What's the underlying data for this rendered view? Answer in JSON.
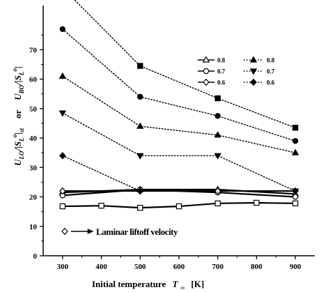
{
  "chart_data": {
    "type": "line",
    "xlabel": "Initial temperature",
    "xlabel_symbol": "T",
    "xlabel_sub": "∞",
    "xlabel_unit": "[K]",
    "ylabel_top": {
      "main": "U",
      "sub": "BO",
      "mid": "/|S",
      "sub2": "L",
      "sup": "o",
      "end": "|"
    },
    "ylabel_or": "or",
    "ylabel_bottom": {
      "main": "U",
      "sub": "LO",
      "mid": "/|S",
      "sub2": "L",
      "sup": "o",
      "end": "|",
      "sub3": "st"
    },
    "xlim": [
      250,
      950
    ],
    "ylim": [
      0,
      85
    ],
    "xticks": [
      300,
      400,
      500,
      600,
      700,
      800,
      900
    ],
    "yticks": [
      0,
      10,
      20,
      30,
      40,
      50,
      60,
      70
    ],
    "grid": false,
    "legend_position": "top-right",
    "series": [
      {
        "name": "0.8",
        "group": "liftoff",
        "marker": "triangle-open",
        "style": "solid",
        "x": [
          300,
          500,
          700,
          900
        ],
        "y": [
          21.5,
          22.5,
          22.5,
          21.0
        ]
      },
      {
        "name": "0.7",
        "group": "liftoff",
        "marker": "circle-open",
        "style": "solid",
        "x": [
          300,
          500,
          700,
          900
        ],
        "y": [
          20.5,
          22.5,
          21.5,
          20.0
        ]
      },
      {
        "name": "0.6",
        "group": "liftoff",
        "marker": "diamond-open",
        "style": "solid",
        "x": [
          300,
          500,
          700,
          900
        ],
        "y": [
          22.0,
          22.0,
          22.0,
          22.0
        ]
      },
      {
        "name": "",
        "group": "liftoff-base",
        "marker": "square-open",
        "style": "solid",
        "x": [
          300,
          400,
          500,
          600,
          700,
          800,
          900
        ],
        "y": [
          16.8,
          17.0,
          16.3,
          16.8,
          17.8,
          18.0,
          17.8
        ]
      },
      {
        "name": "0.8",
        "group": "blowout",
        "marker": "triangle-filled",
        "style": "dotted",
        "x": [
          300,
          500,
          700,
          900
        ],
        "y": [
          61.0,
          44.0,
          41.0,
          35.0
        ]
      },
      {
        "name": "0.7",
        "group": "blowout",
        "marker": "triangle-down-filled",
        "style": "dotted",
        "x": [
          300,
          500,
          700,
          900
        ],
        "y": [
          48.5,
          34.0,
          34.0,
          22.0
        ]
      },
      {
        "name": "0.6",
        "group": "blowout",
        "marker": "diamond-filled",
        "style": "dotted",
        "x": [
          300,
          500,
          700,
          900
        ],
        "y": [
          34.0,
          22.0,
          null,
          null
        ]
      },
      {
        "name": "",
        "group": "blowout-a",
        "marker": "circle-filled",
        "style": "dotted",
        "x": [
          300,
          500,
          700,
          900
        ],
        "y": [
          77.0,
          54.0,
          47.5,
          39.0
        ]
      },
      {
        "name": "",
        "group": "blowout-b",
        "marker": "square-filled",
        "style": "dotted",
        "x": [
          300,
          500,
          700,
          900
        ],
        "y": [
          91.0,
          64.5,
          53.5,
          43.5
        ]
      }
    ],
    "annotation": {
      "text": "Laminar liftoff velocity",
      "marker": "diamond-open",
      "arrow": true
    }
  }
}
